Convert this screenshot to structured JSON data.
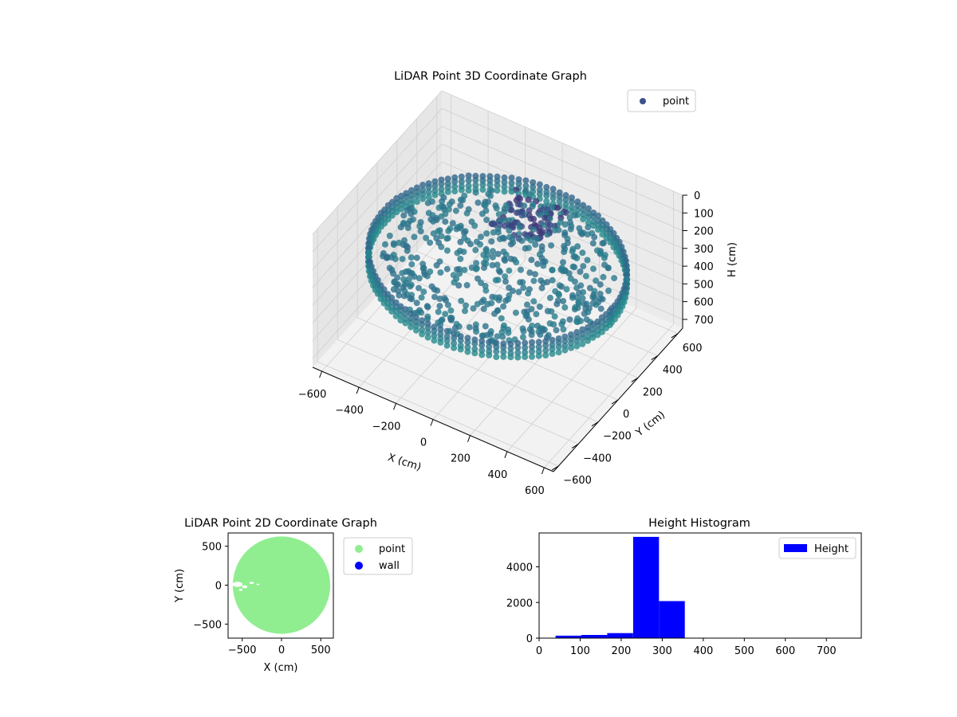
{
  "chart_data": [
    {
      "type": "scatter",
      "projection": "3d",
      "title": "LiDAR Point 3D Coordinate Graph",
      "xlabel": "X (cm)",
      "ylabel": "Y (cm)",
      "zlabel": "H (cm)",
      "xticks": [
        "−600",
        "−400",
        "−200",
        "0",
        "200",
        "400",
        "600"
      ],
      "yticks": [
        "−600",
        "−400",
        "−200",
        "0",
        "200",
        "400",
        "600"
      ],
      "zticks": [
        "0",
        "100",
        "200",
        "300",
        "400",
        "500",
        "600",
        "700"
      ],
      "xlim": [
        -650,
        650
      ],
      "ylim": [
        -650,
        650
      ],
      "zlim": [
        750,
        0
      ],
      "z_axis_inverted": true,
      "grid": true,
      "colormap": "viridis",
      "legend": {
        "position": "upper-right",
        "entries": [
          {
            "name": "point",
            "color": "#3b528b"
          }
        ]
      },
      "series": [
        {
          "name": "point",
          "description_points": "ring of points at radius ~620 cm, height 250–330 cm; inner cluster near x −100..200, y 100..400, height 150–200 cm"
        }
      ]
    },
    {
      "type": "scatter",
      "title": "LiDAR Point 2D Coordinate Graph",
      "xlabel": "X (cm)",
      "ylabel": "Y (cm)",
      "xticks": [
        "−500",
        "0",
        "500"
      ],
      "yticks": [
        "−500",
        "0",
        "500"
      ],
      "xlim": [
        -680,
        660
      ],
      "ylim": [
        -680,
        670
      ],
      "legend": {
        "position": "outside-right",
        "entries": [
          {
            "name": "point",
            "color": "#90ee90"
          },
          {
            "name": "wall",
            "color": "#0000ff"
          }
        ]
      },
      "series": [
        {
          "name": "point",
          "color": "#90ee90",
          "shape": "filled disc",
          "center": [
            0,
            0
          ],
          "radius": 620
        },
        {
          "name": "wall",
          "color": "#0000ff",
          "values": []
        }
      ]
    },
    {
      "type": "bar",
      "subtype": "histogram",
      "title": "Height Histogram",
      "xlabel": "",
      "ylabel": "",
      "xticks": [
        "0",
        "100",
        "200",
        "300",
        "400",
        "500",
        "600",
        "700"
      ],
      "yticks": [
        "0",
        "2000",
        "4000"
      ],
      "xlim": [
        0,
        785
      ],
      "ylim": [
        0,
        5900
      ],
      "bin_edges": [
        40,
        103,
        166,
        229,
        292,
        355,
        418,
        481,
        544,
        607,
        670,
        733
      ],
      "values": [
        140,
        180,
        280,
        5680,
        2080,
        5,
        3,
        2,
        2,
        1,
        1
      ],
      "color": "#0000ff",
      "legend": {
        "position": "upper-right",
        "entries": [
          {
            "name": "Height",
            "color": "#0000ff"
          }
        ]
      }
    }
  ]
}
